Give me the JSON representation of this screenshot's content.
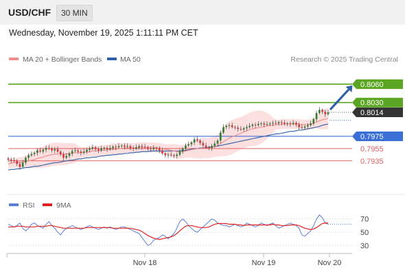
{
  "header": {
    "symbol": "USD/CHF",
    "interval": "30 MIN",
    "timestamp": "Wednesday, November 19, 2025 1:11:11 PM CET"
  },
  "legend": {
    "ma20": {
      "label": "MA 20 + Bollinger Bands",
      "color": "#f08c8c"
    },
    "ma50": {
      "label": "MA 50",
      "color": "#2d5fa8"
    },
    "source": "Research © 2025 Trading Central"
  },
  "colors": {
    "up": "#3aa63a",
    "down": "#d9343a",
    "resistance": "#5aa623",
    "support": "#3a6fd6",
    "pivot": "#e06060",
    "price": "#333333",
    "band": "#fbd9d9",
    "arrow": "#2d5fa8"
  },
  "chart_data": [
    {
      "type": "candlestick",
      "series_names": [
        "MA 20 + Bollinger Bands",
        "MA 50"
      ],
      "ylim": [
        0.788,
        0.809
      ],
      "x_ticks": [
        "Nov 18",
        "Nov 19",
        "Nov 20"
      ],
      "levels": [
        {
          "value": 0.806,
          "label": "0.8060",
          "kind": "resistance"
        },
        {
          "value": 0.803,
          "label": "0.8030",
          "kind": "resistance"
        },
        {
          "value": 0.8014,
          "label": "0.8014",
          "kind": "price"
        },
        {
          "value": 0.7975,
          "label": "0.7975",
          "kind": "support"
        },
        {
          "value": 0.7955,
          "label": "0.7955",
          "kind": "pivot"
        },
        {
          "value": 0.7935,
          "label": "0.7935",
          "kind": "pivot"
        }
      ],
      "close": [
        0.7937,
        0.7936,
        0.7935,
        0.793,
        0.7925,
        0.7932,
        0.794,
        0.7944,
        0.7946,
        0.7948,
        0.7952,
        0.795,
        0.7953,
        0.7956,
        0.7955,
        0.7952,
        0.7954,
        0.795,
        0.7946,
        0.794,
        0.7943,
        0.7947,
        0.7951,
        0.7952,
        0.795,
        0.7948,
        0.795,
        0.7953,
        0.7955,
        0.7957,
        0.7954,
        0.7952,
        0.7955,
        0.7956,
        0.7954,
        0.7956,
        0.7958,
        0.7957,
        0.7959,
        0.796,
        0.7958,
        0.7959,
        0.7956,
        0.7955,
        0.7957,
        0.7959,
        0.7958,
        0.7957,
        0.7955,
        0.7954,
        0.7956,
        0.7955,
        0.7952,
        0.7947,
        0.7944,
        0.7945,
        0.7944,
        0.7943,
        0.7945,
        0.795,
        0.7955,
        0.796,
        0.7962,
        0.7965,
        0.797,
        0.7968,
        0.7964,
        0.796,
        0.7957,
        0.7956,
        0.7959,
        0.7963,
        0.7968,
        0.7981,
        0.799,
        0.7992,
        0.7993,
        0.799,
        0.7989,
        0.7987,
        0.7986,
        0.7988,
        0.799,
        0.7992,
        0.7994,
        0.7993,
        0.7995,
        0.7996,
        0.7994,
        0.7995,
        0.7996,
        0.7997,
        0.7996,
        0.7998,
        0.7997,
        0.7995,
        0.7996,
        0.7995,
        0.7997,
        0.7994,
        0.799,
        0.7989,
        0.7991,
        0.7993,
        0.7996,
        0.8003,
        0.8013,
        0.8018,
        0.8015,
        0.8011,
        0.8014
      ],
      "ma20": [
        0.793,
        0.7931,
        0.7932,
        0.7932,
        0.7932,
        0.7933,
        0.7934,
        0.7935,
        0.7936,
        0.7937,
        0.7939,
        0.794,
        0.7941,
        0.7943,
        0.7944,
        0.7945,
        0.7946,
        0.7946,
        0.7946,
        0.7946,
        0.7946,
        0.7947,
        0.7947,
        0.7948,
        0.7948,
        0.7948,
        0.7949,
        0.7949,
        0.795,
        0.7951,
        0.7951,
        0.7951,
        0.7952,
        0.7952,
        0.7953,
        0.7953,
        0.7954,
        0.7954,
        0.7955,
        0.7955,
        0.7956,
        0.7956,
        0.7956,
        0.7956,
        0.7956,
        0.7957,
        0.7957,
        0.7957,
        0.7957,
        0.7957,
        0.7957,
        0.7956,
        0.7956,
        0.7955,
        0.7954,
        0.7953,
        0.7952,
        0.7951,
        0.795,
        0.795,
        0.795,
        0.7951,
        0.7952,
        0.7953,
        0.7954,
        0.7955,
        0.7955,
        0.7956,
        0.7956,
        0.7956,
        0.7957,
        0.7958,
        0.796,
        0.7963,
        0.7966,
        0.7969,
        0.7972,
        0.7974,
        0.7976,
        0.7978,
        0.798,
        0.7982,
        0.7984,
        0.7986,
        0.7987,
        0.7988,
        0.7989,
        0.799,
        0.7991,
        0.7992,
        0.7993,
        0.7993,
        0.7994,
        0.7994,
        0.7995,
        0.7995,
        0.7995,
        0.7995,
        0.7995,
        0.7995,
        0.7995,
        0.7994,
        0.7994,
        0.7994,
        0.7995,
        0.7996,
        0.7998,
        0.8,
        0.8002,
        0.8003,
        0.8004
      ],
      "ma50": [
        0.792,
        0.7921,
        0.7921,
        0.7922,
        0.7922,
        0.7923,
        0.7924,
        0.7924,
        0.7925,
        0.7926,
        0.7926,
        0.7927,
        0.7928,
        0.7929,
        0.793,
        0.7931,
        0.7932,
        0.7932,
        0.7933,
        0.7934,
        0.7935,
        0.7936,
        0.7936,
        0.7937,
        0.7938,
        0.7938,
        0.7939,
        0.794,
        0.794,
        0.7941,
        0.7941,
        0.7942,
        0.7943,
        0.7943,
        0.7944,
        0.7944,
        0.7945,
        0.7945,
        0.7946,
        0.7946,
        0.7947,
        0.7947,
        0.7948,
        0.7948,
        0.7949,
        0.7949,
        0.795,
        0.795,
        0.795,
        0.7951,
        0.7951,
        0.7951,
        0.7951,
        0.7951,
        0.7951,
        0.7951,
        0.7951,
        0.7951,
        0.7951,
        0.7951,
        0.7952,
        0.7952,
        0.7953,
        0.7954,
        0.7955,
        0.7955,
        0.7956,
        0.7956,
        0.7957,
        0.7957,
        0.7958,
        0.7958,
        0.7959,
        0.796,
        0.7961,
        0.7962,
        0.7963,
        0.7964,
        0.7965,
        0.7966,
        0.7967,
        0.7968,
        0.7969,
        0.797,
        0.7971,
        0.7972,
        0.7973,
        0.7974,
        0.7975,
        0.7976,
        0.7977,
        0.7978,
        0.7979,
        0.7979,
        0.798,
        0.7981,
        0.7982,
        0.7983,
        0.7983,
        0.7984,
        0.7985,
        0.7985,
        0.7986,
        0.7987,
        0.7988,
        0.7989,
        0.799,
        0.7991,
        0.7993,
        0.7994,
        0.7995
      ]
    },
    {
      "type": "line",
      "series_names": [
        "RSI",
        "9MA"
      ],
      "ylim": [
        20,
        80
      ],
      "y_ticks": [
        "70",
        "50",
        "30"
      ],
      "rsi": [
        62,
        60,
        58,
        60,
        64,
        56,
        52,
        56,
        62,
        64,
        60,
        58,
        56,
        62,
        66,
        60,
        56,
        50,
        46,
        52,
        56,
        58,
        60,
        58,
        56,
        54,
        56,
        58,
        60,
        58,
        56,
        54,
        56,
        58,
        56,
        58,
        56,
        54,
        56,
        58,
        58,
        56,
        54,
        52,
        50,
        48,
        42,
        36,
        30,
        32,
        38,
        40,
        42,
        46,
        44,
        40,
        44,
        48,
        56,
        66,
        70,
        66,
        60,
        56,
        52,
        50,
        54,
        58,
        62,
        66,
        70,
        68,
        64,
        62,
        60,
        60,
        58,
        60,
        62,
        60,
        58,
        60,
        64,
        62,
        60,
        58,
        60,
        64,
        62,
        60,
        62,
        64,
        60,
        56,
        58,
        60,
        62,
        64,
        62,
        60,
        56,
        46,
        44,
        48,
        52,
        60,
        70,
        76,
        72,
        64,
        62
      ],
      "ma9": [
        58,
        58,
        58,
        59,
        59,
        59,
        58,
        58,
        58,
        58,
        59,
        59,
        59,
        59,
        60,
        60,
        59,
        58,
        57,
        56,
        56,
        56,
        56,
        56,
        56,
        56,
        56,
        57,
        57,
        57,
        57,
        57,
        57,
        57,
        57,
        57,
        56,
        56,
        56,
        56,
        56,
        56,
        56,
        55,
        54,
        53,
        51,
        48,
        45,
        43,
        41,
        40,
        39,
        40,
        41,
        42,
        43,
        45,
        48,
        52,
        56,
        59,
        60,
        60,
        59,
        58,
        57,
        57,
        57,
        58,
        60,
        62,
        63,
        63,
        63,
        63,
        62,
        62,
        62,
        61,
        61,
        60,
        61,
        61,
        61,
        61,
        61,
        61,
        61,
        61,
        61,
        62,
        61,
        61,
        60,
        60,
        60,
        61,
        61,
        61,
        60,
        58,
        56,
        55,
        54,
        55,
        57,
        60,
        63,
        64,
        64
      ]
    }
  ],
  "rsi_legend": {
    "rsi": {
      "label": "RSI",
      "color": "#5b7fd6"
    },
    "ma9": {
      "label": "9MA",
      "color": "#e02020"
    }
  }
}
